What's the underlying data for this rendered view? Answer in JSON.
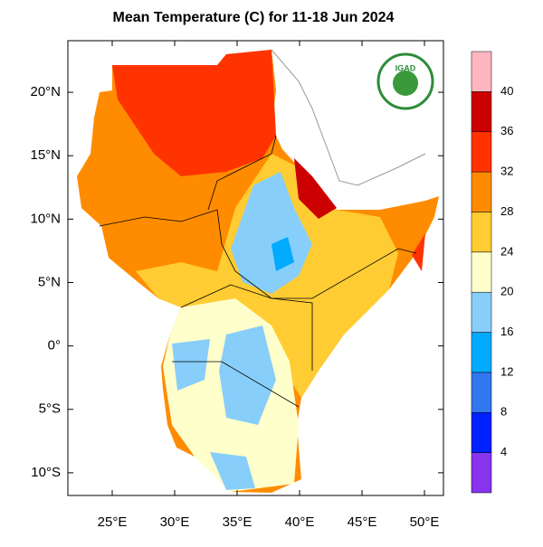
{
  "chart_data": {
    "type": "map",
    "title": "Mean Temperature (C) for 11-18 Jun 2024",
    "logo": "IGAD",
    "xlim": [
      21.45,
      51.52
    ],
    "ylim": [
      -11.79,
      24.07
    ],
    "xticks": [
      {
        "value": 25,
        "label": "25°E"
      },
      {
        "value": 30,
        "label": "30°E"
      },
      {
        "value": 35,
        "label": "35°E"
      },
      {
        "value": 40,
        "label": "40°E"
      },
      {
        "value": 45,
        "label": "45°E"
      },
      {
        "value": 50,
        "label": "50°E"
      }
    ],
    "yticks": [
      {
        "value": 20,
        "label": "20°N"
      },
      {
        "value": 15,
        "label": "15°N"
      },
      {
        "value": 10,
        "label": "10°N"
      },
      {
        "value": 5,
        "label": "5°N"
      },
      {
        "value": 0,
        "label": "0°"
      },
      {
        "value": -5,
        "label": "5°S"
      },
      {
        "value": -10,
        "label": "10°S"
      }
    ],
    "levels": [
      4,
      8,
      12,
      16,
      20,
      24,
      28,
      32,
      36,
      40
    ],
    "colors": [
      "#8833ee",
      "#0022ff",
      "#3377ee",
      "#00aaff",
      "#87cefa",
      "#ffffcc",
      "#ffcc33",
      "#ff8c00",
      "#ff3300",
      "#cc0000",
      "#ffb6c1"
    ]
  }
}
